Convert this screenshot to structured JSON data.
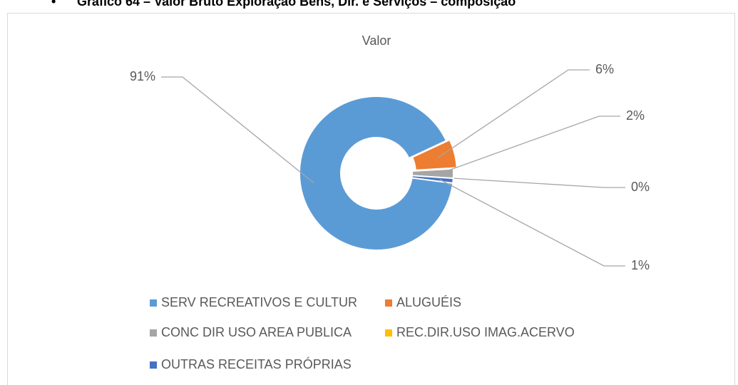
{
  "heading": "Gráfico 64 – Valor Bruto Exploração Bens, Dir. e Serviços – composição",
  "chart_data": {
    "type": "donut",
    "title": "Valor",
    "categories": [
      "SERV RECREATIVOS E CULTUR",
      "ALUGUÉIS",
      "CONC DIR USO AREA PUBLICA",
      "REC.DIR.USO IMAG.ACERVO",
      "OUTRAS RECEITAS PRÓPRIAS"
    ],
    "values": [
      91,
      6,
      2,
      0,
      1
    ],
    "value_labels": [
      "91%",
      "6%",
      "2%",
      "0%",
      "1%"
    ],
    "colors": [
      "#5b9bd5",
      "#ed7d31",
      "#a5a5a5",
      "#ffc000",
      "#4472c4"
    ],
    "legend": "bottom"
  }
}
